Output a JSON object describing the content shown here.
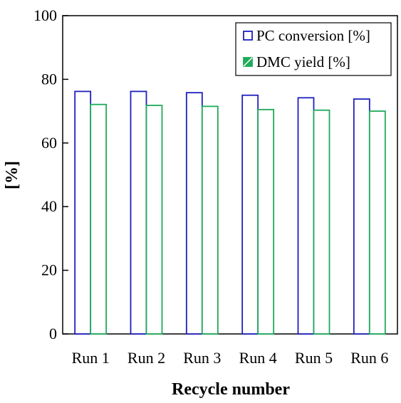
{
  "chart_data": {
    "type": "bar",
    "title": "",
    "xlabel": "Recycle number",
    "ylabel": "[%]",
    "categories": [
      "Run 1",
      "Run 2",
      "Run 3",
      "Run 4",
      "Run 5",
      "Run 6"
    ],
    "series": [
      {
        "name": "PC conversion [%]",
        "values": [
          76.2,
          76.2,
          75.8,
          75.0,
          74.2,
          73.8
        ],
        "color": "#1f1fbf"
      },
      {
        "name": "DMC yield [%]",
        "values": [
          72.1,
          71.8,
          71.5,
          70.5,
          70.3,
          70.0
        ],
        "color": "#1faa5a"
      }
    ],
    "ylim": [
      0,
      100
    ],
    "yticks": [
      "0",
      "20",
      "40",
      "60",
      "80",
      "100"
    ],
    "grid": false,
    "legend_position": "top-right"
  }
}
